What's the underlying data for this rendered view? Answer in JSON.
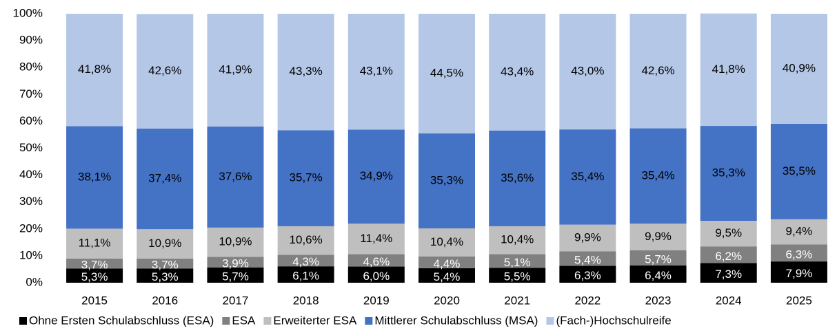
{
  "chart_data": {
    "type": "stacked-bar",
    "categories": [
      "2015",
      "2016",
      "2017",
      "2018",
      "2019",
      "2020",
      "2021",
      "2022",
      "2023",
      "2024",
      "2025"
    ],
    "series": [
      {
        "name": "Ohne Ersten Schulabschluss (ESA)",
        "color": "#000000",
        "values": [
          5.3,
          5.3,
          5.7,
          6.1,
          6.0,
          5.4,
          5.5,
          6.3,
          6.4,
          7.3,
          7.9
        ],
        "value_labels": [
          "5,3%",
          "5,3%",
          "5,7%",
          "6,1%",
          "6,0%",
          "5,4%",
          "5,5%",
          "6,3%",
          "6,4%",
          "7,3%",
          "7,9%"
        ]
      },
      {
        "name": "ESA",
        "color": "#808080",
        "values": [
          3.7,
          3.7,
          3.9,
          4.3,
          4.6,
          4.4,
          5.1,
          5.4,
          5.7,
          6.2,
          6.3
        ],
        "value_labels": [
          "3,7%",
          "3,7%",
          "3,9%",
          "4,3%",
          "4,6%",
          "4,4%",
          "5,1%",
          "5,4%",
          "5,7%",
          "6,2%",
          "6,3%"
        ]
      },
      {
        "name": "Erweiterter ESA",
        "color": "#bfbfbf",
        "values": [
          11.1,
          10.9,
          10.9,
          10.6,
          11.4,
          10.4,
          10.4,
          9.9,
          9.9,
          9.5,
          9.4
        ],
        "value_labels": [
          "11,1%",
          "10,9%",
          "10,9%",
          "10,6%",
          "11,4%",
          "10,4%",
          "10,4%",
          "9,9%",
          "9,9%",
          "9,5%",
          "9,4%"
        ]
      },
      {
        "name": "Mittlerer Schulabschluss (MSA)",
        "color": "#4472c4",
        "values": [
          38.1,
          37.4,
          37.6,
          35.7,
          34.9,
          35.3,
          35.6,
          35.4,
          35.4,
          35.3,
          35.5
        ],
        "value_labels": [
          "38,1%",
          "37,4%",
          "37,6%",
          "35,7%",
          "34,9%",
          "35,3%",
          "35,6%",
          "35,4%",
          "35,4%",
          "35,3%",
          "35,5%"
        ]
      },
      {
        "name": "(Fach-)Hochschulreife",
        "color": "#b4c7e7",
        "values": [
          41.8,
          42.6,
          41.9,
          43.3,
          43.1,
          44.5,
          43.4,
          43.0,
          42.6,
          41.8,
          40.9
        ],
        "value_labels": [
          "41,8%",
          "42,6%",
          "41,9%",
          "43,3%",
          "43,1%",
          "44,5%",
          "43,4%",
          "43,0%",
          "42,6%",
          "41,8%",
          "40,9%"
        ]
      }
    ],
    "ylim": [
      0,
      100
    ],
    "yticks": [
      {
        "value": 0,
        "label": "0%"
      },
      {
        "value": 10,
        "label": "10%"
      },
      {
        "value": 20,
        "label": "20%"
      },
      {
        "value": 30,
        "label": "30%"
      },
      {
        "value": 40,
        "label": "40%"
      },
      {
        "value": 50,
        "label": "50%"
      },
      {
        "value": 60,
        "label": "60%"
      },
      {
        "value": 70,
        "label": "70%"
      },
      {
        "value": 80,
        "label": "80%"
      },
      {
        "value": 90,
        "label": "90%"
      },
      {
        "value": 100,
        "label": "100%"
      }
    ],
    "legend": "bottom"
  }
}
